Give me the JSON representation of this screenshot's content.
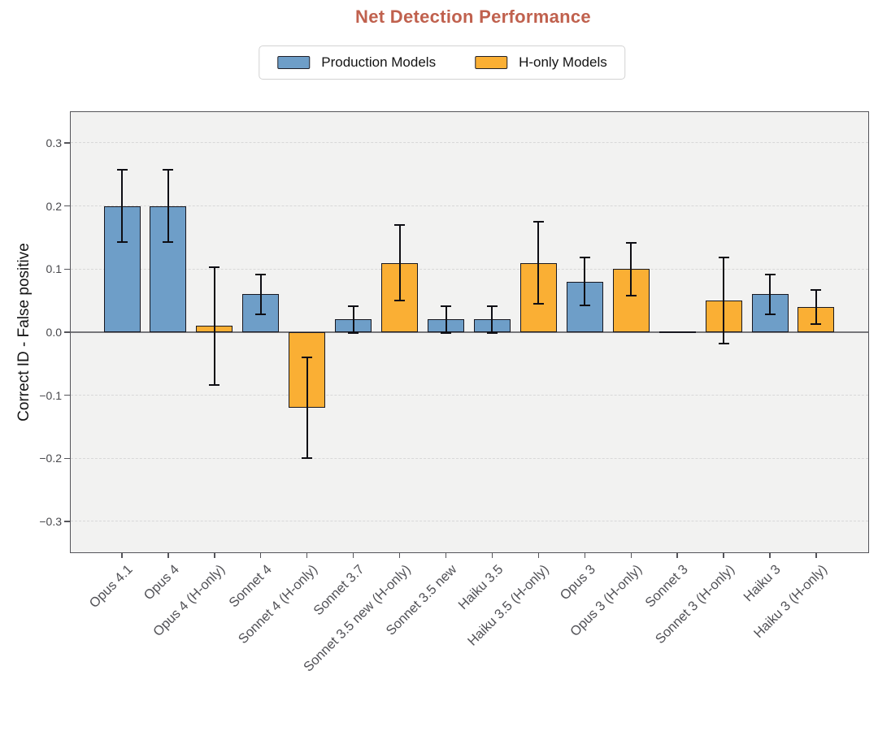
{
  "title": "Net Detection Performance",
  "title_color": "#C0614E",
  "legend": {
    "items": [
      {
        "key": "production",
        "label": "Production Models"
      },
      {
        "key": "h_only",
        "label": "H-only Models"
      }
    ]
  },
  "chart_data": {
    "type": "bar",
    "title": "Net Detection Performance",
    "xlabel": "",
    "ylabel": "Correct ID - False positive",
    "ylim": [
      -0.35,
      0.35
    ],
    "grid": "horizontal dashed at 0.1 intervals, solid line at 0",
    "legend_position": "top center",
    "colors": {
      "production": "#6E9EC8",
      "h_only": "#FAAF34"
    },
    "yticks": [
      {
        "value": 0.3,
        "label": "0.3"
      },
      {
        "value": 0.2,
        "label": "0.2"
      },
      {
        "value": 0.1,
        "label": "0.1"
      },
      {
        "value": 0.0,
        "label": "0.0"
      },
      {
        "value": -0.1,
        "label": "−0.1"
      },
      {
        "value": -0.2,
        "label": "−0.2"
      },
      {
        "value": -0.3,
        "label": "−0.3"
      }
    ],
    "bars": [
      {
        "category": "Opus 4.1",
        "group": "production",
        "series": "Production Models",
        "value": 0.2,
        "error": 0.057
      },
      {
        "category": "Opus 4",
        "group": "production",
        "series": "Production Models",
        "value": 0.2,
        "error": 0.057
      },
      {
        "category": "Opus 4 (H-only)",
        "group": "h_only",
        "series": "H-only Models",
        "value": 0.01,
        "error": 0.093
      },
      {
        "category": "Sonnet 4",
        "group": "production",
        "series": "Production Models",
        "value": 0.06,
        "error": 0.032
      },
      {
        "category": "Sonnet 4 (H-only)",
        "group": "h_only",
        "series": "H-only Models",
        "value": -0.12,
        "error": 0.08
      },
      {
        "category": "Sonnet 3.7",
        "group": "production",
        "series": "Production Models",
        "value": 0.02,
        "error": 0.021
      },
      {
        "category": "Sonnet 3.5 new (H-only)",
        "group": "h_only",
        "series": "H-only Models",
        "value": 0.11,
        "error": 0.06
      },
      {
        "category": "Sonnet 3.5 new",
        "group": "production",
        "series": "Production Models",
        "value": 0.02,
        "error": 0.021
      },
      {
        "category": "Haiku 3.5",
        "group": "production",
        "series": "Production Models",
        "value": 0.02,
        "error": 0.021
      },
      {
        "category": "Haiku 3.5 (H-only)",
        "group": "h_only",
        "series": "H-only Models",
        "value": 0.11,
        "error": 0.065
      },
      {
        "category": "Opus 3",
        "group": "production",
        "series": "Production Models",
        "value": 0.08,
        "error": 0.038
      },
      {
        "category": "Opus 3 (H-only)",
        "group": "h_only",
        "series": "H-only Models",
        "value": 0.1,
        "error": 0.042
      },
      {
        "category": "Sonnet 3",
        "group": "production",
        "series": "Production Models",
        "value": 0.0,
        "error": 0.0
      },
      {
        "category": "Sonnet 3 (H-only)",
        "group": "h_only",
        "series": "H-only Models",
        "value": 0.05,
        "error": 0.068
      },
      {
        "category": "Haiku 3",
        "group": "production",
        "series": "Production Models",
        "value": 0.06,
        "error": 0.032
      },
      {
        "category": "Haiku 3 (H-only)",
        "group": "h_only",
        "series": "H-only Models",
        "value": 0.04,
        "error": 0.027
      }
    ]
  }
}
